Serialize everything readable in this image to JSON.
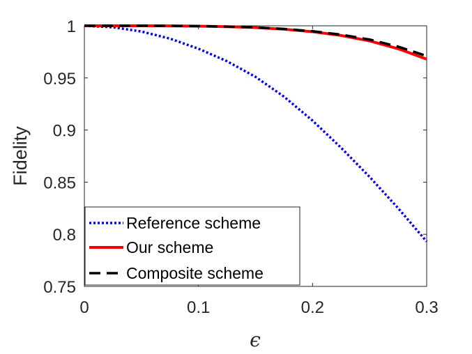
{
  "chart_data": {
    "type": "line",
    "xlabel": "ϵ",
    "ylabel": "Fidelity",
    "xlim": [
      0,
      0.3
    ],
    "ylim": [
      0.75,
      1.0
    ],
    "xticks": [
      0,
      0.1,
      0.2,
      0.3
    ],
    "xtick_labels": [
      "0",
      "0.1",
      "0.2",
      "0.3"
    ],
    "yticks": [
      0.75,
      0.8,
      0.85,
      0.9,
      0.95,
      1.0
    ],
    "ytick_labels": [
      "0.75",
      "0.8",
      "0.85",
      "0.9",
      "0.95",
      "1"
    ],
    "grid": false,
    "legend_position": "bottom-left",
    "x": [
      0,
      0.025,
      0.05,
      0.075,
      0.1,
      0.125,
      0.15,
      0.175,
      0.2,
      0.225,
      0.25,
      0.275,
      0.3
    ],
    "series": [
      {
        "name": "Reference scheme",
        "color": "#0000ff",
        "style": "dotted",
        "values": [
          1.0,
          0.9986,
          0.9945,
          0.9877,
          0.978,
          0.966,
          0.951,
          0.932,
          0.909,
          0.883,
          0.855,
          0.825,
          0.793
        ]
      },
      {
        "name": "Our scheme",
        "color": "#ff0000",
        "style": "solid",
        "values": [
          1.0,
          1.0,
          1.0,
          0.9999,
          0.9997,
          0.9992,
          0.9983,
          0.9967,
          0.9943,
          0.9907,
          0.9855,
          0.978,
          0.968
        ]
      },
      {
        "name": "Composite scheme",
        "color": "#000000",
        "style": "dashed",
        "values": [
          1.0,
          1.0,
          1.0,
          0.9999,
          0.9997,
          0.9992,
          0.9984,
          0.997,
          0.9948,
          0.9915,
          0.9868,
          0.98,
          0.971
        ]
      }
    ]
  }
}
